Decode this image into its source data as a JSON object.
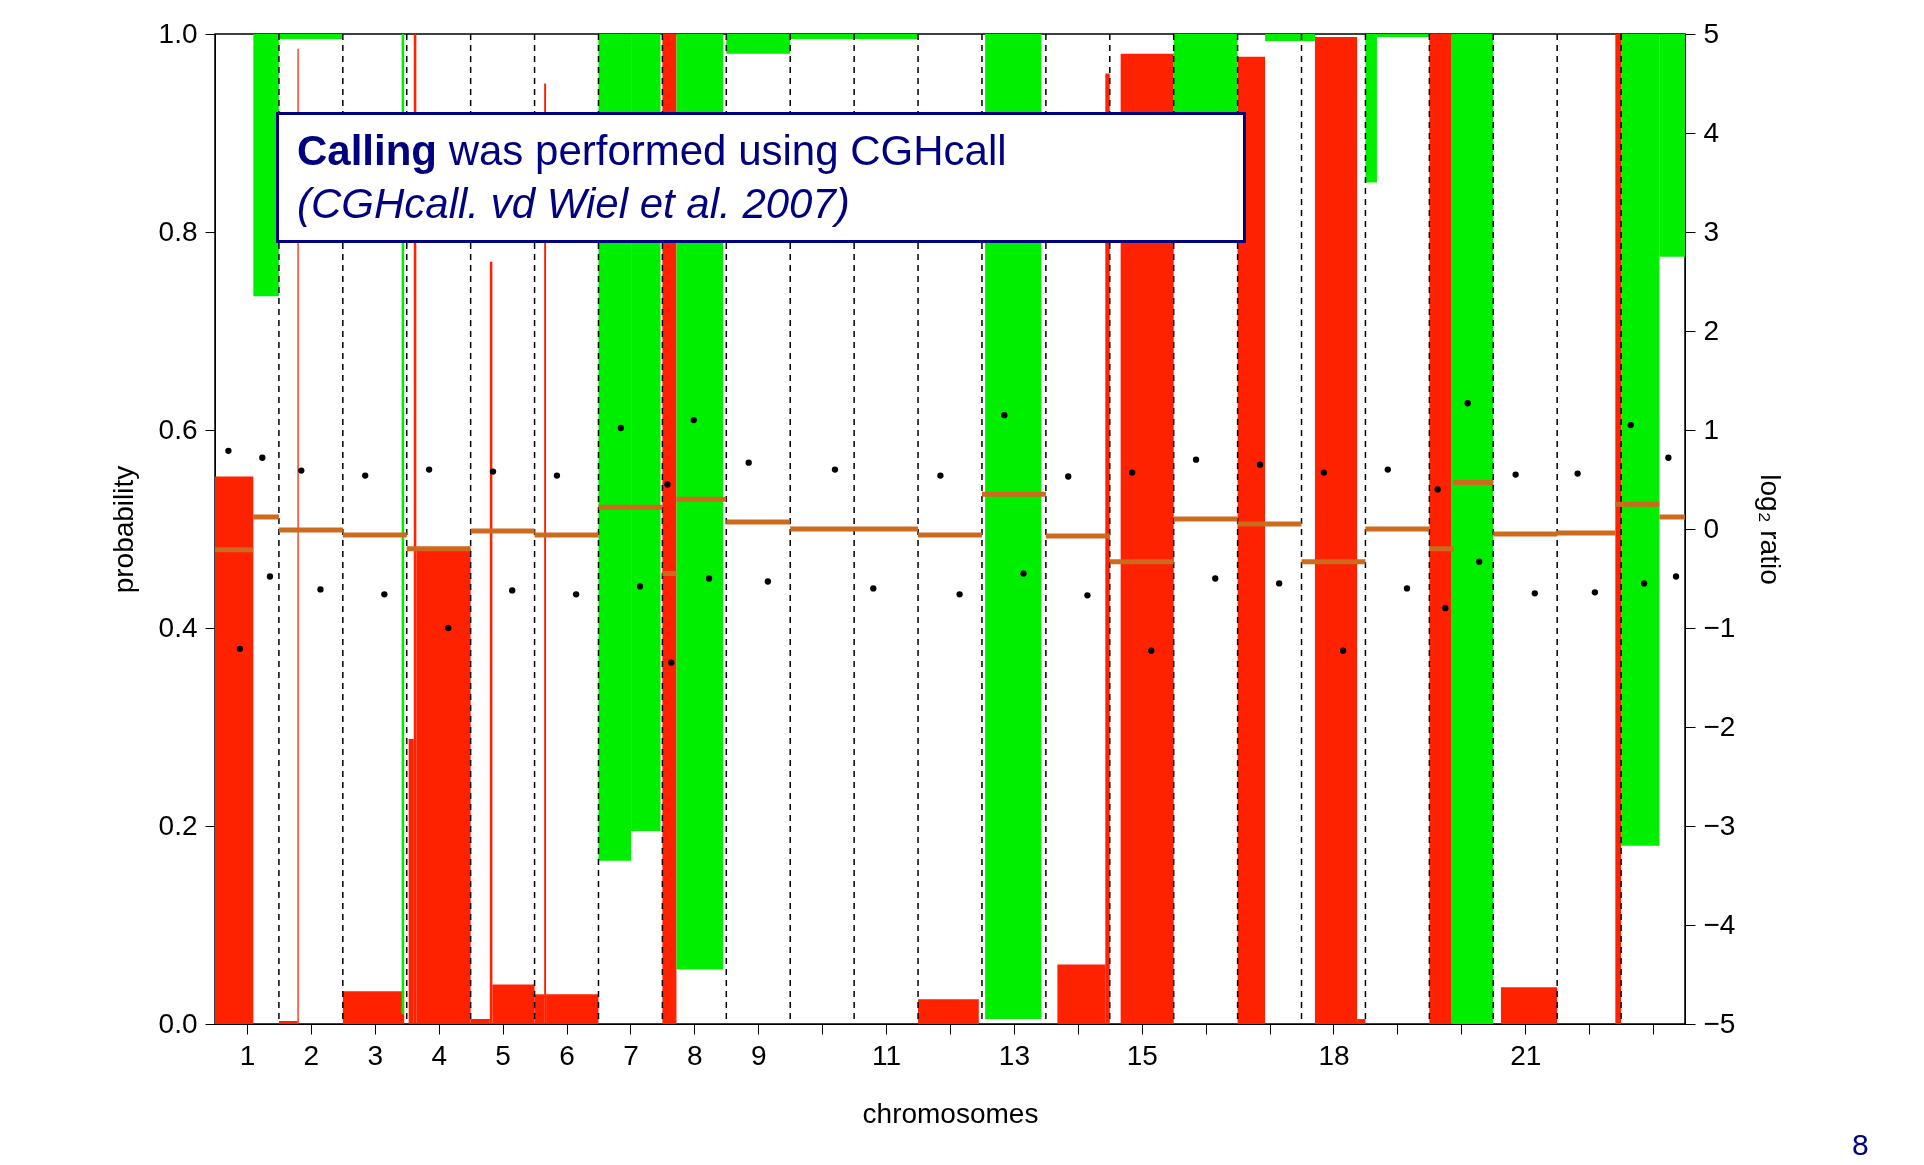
{
  "chart_data": {
    "type": "histogram",
    "xlabel": "chromosomes",
    "ylabel": "probability",
    "y2label": "log₂ ratio",
    "xlim": [
      0.5,
      23.5
    ],
    "xticks": [
      1,
      2,
      3,
      4,
      5,
      6,
      7,
      8,
      9,
      {
        "value": 10,
        "label": null
      },
      11,
      {
        "value": 12,
        "label": null
      },
      13,
      {
        "value": 14,
        "label": null
      },
      15,
      {
        "value": 16,
        "label": null
      },
      {
        "value": 17,
        "label": null
      },
      18,
      {
        "value": 19,
        "label": null
      },
      {
        "value": 20,
        "label": null
      },
      21,
      {
        "value": 22,
        "label": null
      },
      {
        "value": 23,
        "label": null
      }
    ],
    "ylim": [
      0,
      1
    ],
    "yticks": [
      {
        "value": 0,
        "label": "0.0"
      },
      {
        "value": 0.2,
        "label": "0.2"
      },
      {
        "value": 0.4,
        "label": "0.4"
      },
      {
        "value": 0.6,
        "label": "0.6"
      },
      {
        "value": 0.8,
        "label": "0.8"
      },
      {
        "value": 1,
        "label": "1.0"
      }
    ],
    "y2lim": [
      -5,
      5
    ],
    "y2ticks": [
      {
        "value": -5,
        "label": "−5"
      },
      {
        "value": -4,
        "label": "−4"
      },
      {
        "value": -3,
        "label": "−3"
      },
      {
        "value": -2,
        "label": "−2"
      },
      {
        "value": -1,
        "label": "−1"
      },
      0,
      1,
      2,
      3,
      4,
      5
    ],
    "annotations": [
      "Calling was performed using CGHcall",
      "(CGHcall. vd Wiel et al. 2007)",
      "8"
    ],
    "ref_lines": [
      {
        "axis": "x",
        "value": 1.5,
        "color": "#000000",
        "line_style": "dashed"
      },
      {
        "axis": "x",
        "value": 2.5,
        "color": "#000000",
        "line_style": "dashed"
      },
      {
        "axis": "x",
        "value": 3.5,
        "color": "#000000",
        "line_style": "dashed"
      },
      {
        "axis": "x",
        "value": 4.5,
        "color": "#000000",
        "line_style": "dashed"
      },
      {
        "axis": "x",
        "value": 5.5,
        "color": "#000000",
        "line_style": "dashed"
      },
      {
        "axis": "x",
        "value": 6.5,
        "color": "#000000",
        "line_style": "dashed"
      },
      {
        "axis": "x",
        "value": 7.5,
        "color": "#000000",
        "line_style": "dashed"
      },
      {
        "axis": "x",
        "value": 8.5,
        "color": "#000000",
        "line_style": "dashed"
      },
      {
        "axis": "x",
        "value": 9.5,
        "color": "#000000",
        "line_style": "dashed"
      },
      {
        "axis": "x",
        "value": 10.5,
        "color": "#000000",
        "line_style": "dashed"
      },
      {
        "axis": "x",
        "value": 11.5,
        "color": "#000000",
        "line_style": "dashed"
      },
      {
        "axis": "x",
        "value": 12.5,
        "color": "#000000",
        "line_style": "dashed"
      },
      {
        "axis": "x",
        "value": 13.5,
        "color": "#000000",
        "line_style": "dashed"
      },
      {
        "axis": "x",
        "value": 14.5,
        "color": "#000000",
        "line_style": "dashed"
      },
      {
        "axis": "x",
        "value": 15.5,
        "color": "#000000",
        "line_style": "dashed"
      },
      {
        "axis": "x",
        "value": 16.5,
        "color": "#000000",
        "line_style": "dashed"
      },
      {
        "axis": "x",
        "value": 17.5,
        "color": "#000000",
        "line_style": "dashed"
      },
      {
        "axis": "x",
        "value": 18.5,
        "color": "#000000",
        "line_style": "dashed"
      },
      {
        "axis": "x",
        "value": 19.5,
        "color": "#000000",
        "line_style": "dashed"
      },
      {
        "axis": "x",
        "value": 20.5,
        "color": "#000000",
        "line_style": "dashed"
      },
      {
        "axis": "x",
        "value": 21.5,
        "color": "#000000",
        "line_style": "dashed"
      },
      {
        "axis": "x",
        "value": 22.5,
        "color": "#000000",
        "line_style": "dashed"
      }
    ],
    "series": [
      {
        "color": "#ff2200",
        "bins": [
          0.5,
          1.1,
          1.5,
          1.79,
          1.81,
          2.5,
          3.46,
          3.53,
          3.61,
          3.65,
          4.5,
          4.8,
          4.84,
          5.5,
          5.65,
          5.68,
          6.5,
          7.5,
          7.72,
          11.5,
          12.45,
          13.68,
          14.43,
          14.5,
          14.67,
          15.5,
          16.5,
          16.93,
          17.71,
          18.37,
          18.5,
          19.5,
          19.85,
          20.62,
          21.5,
          22.41,
          22.5
        ],
        "values": [
          0.553,
          0,
          0.003,
          0.985,
          0,
          0.033,
          0,
          0.288,
          1,
          0.48,
          0.005,
          0.77,
          0.04,
          0.03,
          0.95,
          0.03,
          0,
          1,
          0,
          0.025,
          0,
          0.06,
          0.96,
          0,
          0.98,
          0,
          0.977,
          0,
          0.997,
          0.005,
          0,
          1,
          0,
          0.037,
          0,
          1
        ]
      },
      {
        "color": "#00ee00",
        "bins": [
          1.1,
          1.5,
          2.5,
          3.42,
          3.46,
          6.5,
          7.01,
          7.47,
          7.72,
          8.45,
          8.5,
          9.5,
          11.5,
          12.55,
          13.43,
          15.5,
          16.5,
          16.93,
          17.71,
          18.5,
          18.68,
          19.5,
          19.85,
          20.5,
          22.5,
          23.1,
          23.5
        ],
        "values": [
          0.265,
          0.005,
          null,
          0.99,
          null,
          0.835,
          0.805,
          null,
          0.945,
          null,
          0.02,
          0.005,
          null,
          0.995,
          null,
          0.08,
          null,
          0.007,
          null,
          0.15,
          0.003,
          null,
          1,
          null,
          0.82,
          0.225
        ],
        "base": [
          0.735,
          0.995,
          null,
          0.01,
          null,
          0.165,
          0.195,
          null,
          0.055,
          null,
          0.98,
          0.995,
          null,
          0.005,
          null,
          0.92,
          null,
          0.993,
          null,
          0.85,
          0.997,
          null,
          0,
          null,
          0.18,
          0.775
        ]
      },
      {
        "type": "scatter",
        "axis": "y2",
        "color": "#000000",
        "marker": "circle",
        "x": [
          0.71,
          0.89,
          1.24,
          1.36,
          1.85,
          2.15,
          2.85,
          3.15,
          3.85,
          4.15,
          4.85,
          5.15,
          5.85,
          6.15,
          6.85,
          7.15,
          7.58,
          7.64,
          7.99,
          8.23,
          8.85,
          9.15,
          10.2,
          10.8,
          11.85,
          12.15,
          12.85,
          13.15,
          13.85,
          14.15,
          14.85,
          15.15,
          15.85,
          16.15,
          16.85,
          17.15,
          17.85,
          18.15,
          18.85,
          19.15,
          19.63,
          19.75,
          20.1,
          20.28,
          20.85,
          21.15,
          21.82,
          22.09,
          22.65,
          22.86,
          23.24,
          23.36
        ],
        "values": [
          0.79,
          -1.21,
          0.72,
          -0.48,
          0.59,
          -0.61,
          0.54,
          -0.66,
          0.6,
          -1.0,
          0.58,
          -0.62,
          0.54,
          -0.66,
          1.02,
          -0.58,
          0.45,
          -1.35,
          1.1,
          -0.5,
          0.67,
          -0.53,
          0.6,
          -0.6,
          0.54,
          -0.66,
          1.15,
          -0.45,
          0.53,
          -0.67,
          0.57,
          -1.23,
          0.7,
          -0.5,
          0.65,
          -0.55,
          0.57,
          -1.23,
          0.6,
          -0.6,
          0.4,
          -0.8,
          1.27,
          -0.33,
          0.55,
          -0.65,
          0.56,
          -0.64,
          1.05,
          -0.55,
          0.72,
          -0.48
        ]
      },
      {
        "type": "line",
        "axis": "y2",
        "color": "#cc6a1e",
        "x": [
          0.5,
          1.1,
          null,
          1.1,
          1.5,
          null,
          1.5,
          2.5,
          null,
          2.5,
          3.5,
          null,
          3.5,
          4.5,
          null,
          4.5,
          5.5,
          null,
          5.5,
          6.5,
          null,
          6.5,
          7.5,
          null,
          7.5,
          7.72,
          null,
          7.72,
          8.5,
          null,
          8.5,
          9.5,
          null,
          9.5,
          11.5,
          null,
          11.5,
          12.5,
          null,
          12.5,
          13.5,
          null,
          13.5,
          14.5,
          null,
          14.5,
          15.5,
          null,
          15.5,
          16.5,
          null,
          16.5,
          17.5,
          null,
          17.5,
          18.5,
          null,
          18.5,
          19.5,
          null,
          19.5,
          19.88,
          null,
          19.88,
          20.5,
          null,
          20.5,
          21.5,
          null,
          21.5,
          22.41,
          null,
          22.41,
          23.1,
          null,
          23.1,
          23.5
        ],
        "values": [
          -0.21,
          -0.21,
          null,
          0.12,
          0.12,
          null,
          -0.01,
          -0.01,
          null,
          -0.06,
          -0.06,
          null,
          -0.2,
          -0.2,
          null,
          -0.02,
          -0.02,
          null,
          -0.06,
          -0.06,
          null,
          0.22,
          0.22,
          null,
          -0.45,
          -0.45,
          null,
          0.3,
          0.3,
          null,
          0.07,
          0.07,
          null,
          0,
          0,
          null,
          -0.06,
          -0.06,
          null,
          0.35,
          0.35,
          null,
          -0.07,
          -0.07,
          null,
          -0.33,
          -0.33,
          null,
          0.1,
          0.1,
          null,
          0.05,
          0.05,
          null,
          -0.33,
          -0.33,
          null,
          0,
          0,
          null,
          -0.2,
          -0.2,
          null,
          0.47,
          0.47,
          null,
          -0.05,
          -0.05,
          null,
          -0.04,
          -0.04,
          null,
          0.25,
          0.25,
          null,
          0.12,
          0.12
        ]
      }
    ]
  }
}
